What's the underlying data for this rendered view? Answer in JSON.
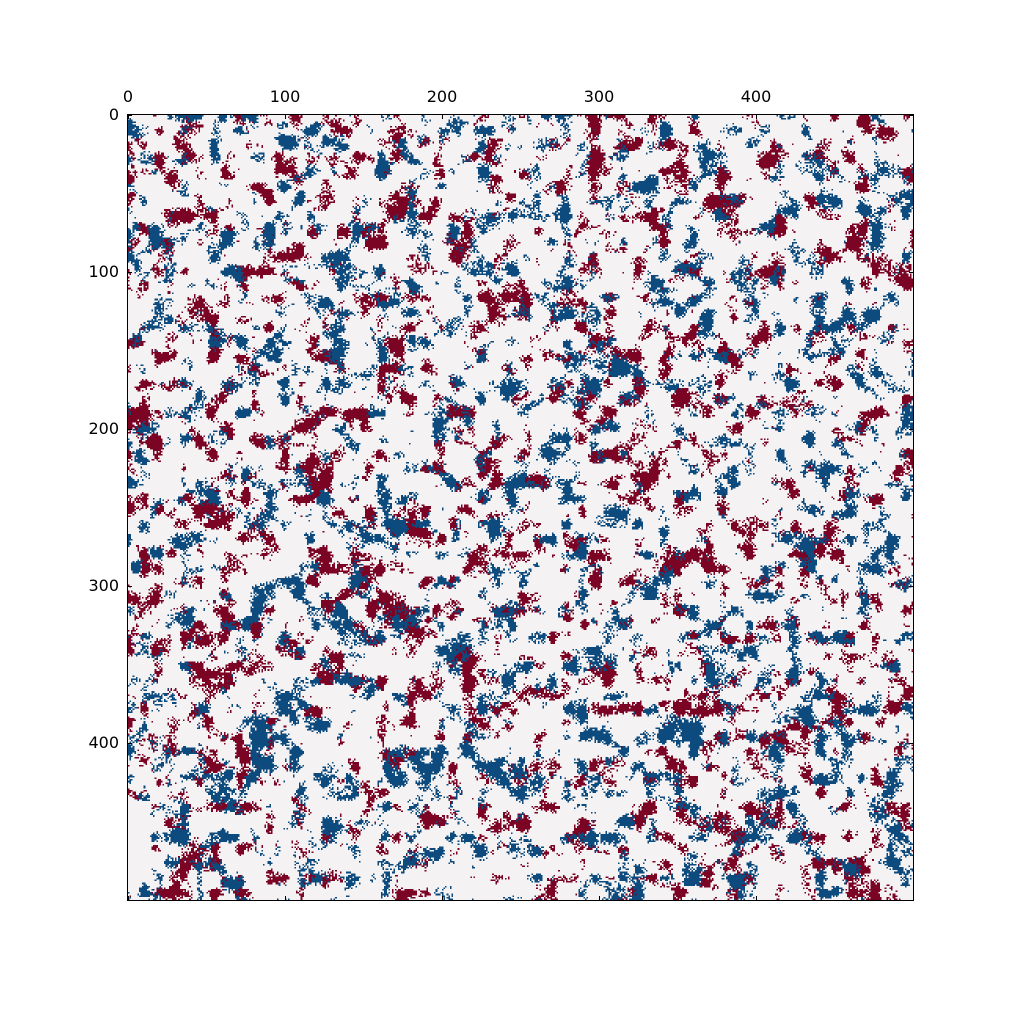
{
  "chart_data": {
    "type": "heatmap",
    "title": "",
    "xlabel": "",
    "ylabel": "",
    "grid_size": [
      500,
      500
    ],
    "xlim": [
      0,
      500
    ],
    "ylim": [
      500,
      0
    ],
    "x_axis_position": "top",
    "x_ticks": [
      0,
      100,
      200,
      300,
      400
    ],
    "y_ticks": [
      0,
      100,
      200,
      300,
      400
    ],
    "x_tick_labels": [
      "0",
      "100",
      "200",
      "300",
      "400"
    ],
    "y_tick_labels": [
      "0",
      "100",
      "200",
      "300",
      "400"
    ],
    "grid": false,
    "legend": "none",
    "cell_states": [
      -1,
      0,
      1
    ],
    "colors": {
      "negative": "#0d4a7e",
      "neutral": "#f4f2f2",
      "positive": "#7b0425"
    },
    "state_fractions": {
      "negative": 0.2,
      "neutral": 0.6,
      "positive": 0.2
    }
  }
}
